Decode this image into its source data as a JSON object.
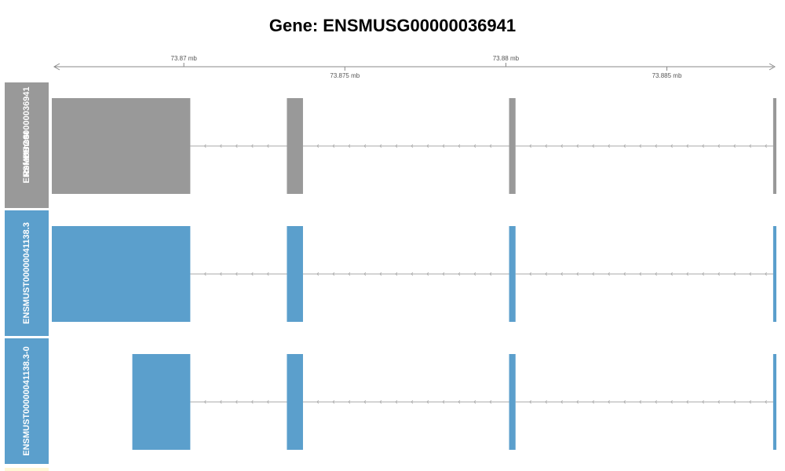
{
  "title": "Gene: ENSMUSG00000036941",
  "colors": {
    "reference": "#999999",
    "transcript": "#5b9fcc",
    "intron": "#a8a8a8",
    "axis": "#888888"
  },
  "chart_data": {
    "type": "gene-track",
    "unit": "mb",
    "xlim": [
      73.8659,
      73.8884
    ],
    "ticks_top": [
      {
        "value": 73.87,
        "label": "73.87 mb"
      },
      {
        "value": 73.88,
        "label": "73.88 mb"
      }
    ],
    "ticks_bottom": [
      {
        "value": 73.875,
        "label": "73.875 mb"
      },
      {
        "value": 73.885,
        "label": "73.885 mb"
      }
    ],
    "tracks": [
      {
        "label_lines": [
          "ENSMUSG00000036941",
          "BUGSI",
          "Reference"
        ],
        "kind": "reference",
        "exons": [
          [
            73.8659,
            73.8702
          ],
          [
            73.8732,
            73.8737
          ],
          [
            73.8801,
            73.8803
          ],
          [
            73.8883,
            73.8884
          ]
        ]
      },
      {
        "label_lines": [
          "ENSMUST00000041138.3"
        ],
        "kind": "transcript",
        "exons": [
          [
            73.8659,
            73.8702
          ],
          [
            73.8732,
            73.8737
          ],
          [
            73.8801,
            73.8803
          ],
          [
            73.8883,
            73.8884
          ]
        ]
      },
      {
        "label_lines": [
          "ENSMUST00000041138.3-0"
        ],
        "kind": "transcript",
        "exons": [
          [
            73.8684,
            73.8702
          ],
          [
            73.8732,
            73.8737
          ],
          [
            73.8801,
            73.8803
          ],
          [
            73.8883,
            73.8884
          ]
        ]
      }
    ]
  }
}
